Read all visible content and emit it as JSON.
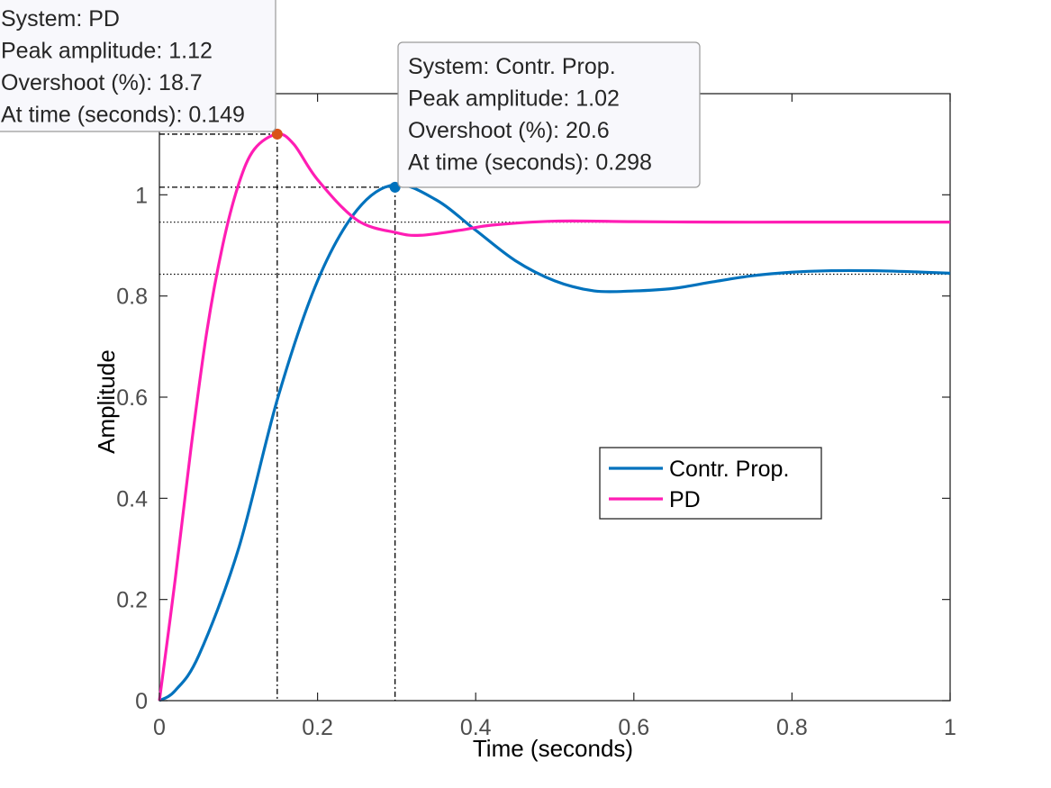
{
  "chart_data": {
    "type": "line",
    "title": "",
    "xlabel": "Time (seconds)",
    "ylabel": "Amplitude",
    "xlim": [
      0,
      1
    ],
    "ylim": [
      0,
      1.2
    ],
    "xticks": [
      0,
      0.2,
      0.4,
      0.6,
      0.8,
      1
    ],
    "xtick_labels": [
      "0",
      "0.2",
      "0.4",
      "0.6",
      "0.8",
      "1"
    ],
    "yticks": [
      0,
      0.2,
      0.4,
      0.6,
      0.8,
      1
    ],
    "ytick_labels": [
      "0",
      "0.2",
      "0.4",
      "0.6",
      "0.8",
      "1"
    ],
    "grid": false,
    "legend_position": "center-right",
    "series": [
      {
        "name": "Contr. Prop.",
        "color": "#0072BD",
        "x": [
          0,
          0.02,
          0.05,
          0.1,
          0.15,
          0.2,
          0.25,
          0.298,
          0.35,
          0.4,
          0.45,
          0.5,
          0.55,
          0.6,
          0.65,
          0.7,
          0.75,
          0.8,
          0.85,
          0.9,
          0.95,
          1.0
        ],
        "y": [
          0,
          0.02,
          0.09,
          0.3,
          0.6,
          0.83,
          0.97,
          1.02,
          0.99,
          0.93,
          0.87,
          0.83,
          0.81,
          0.81,
          0.815,
          0.828,
          0.84,
          0.847,
          0.85,
          0.85,
          0.848,
          0.845
        ]
      },
      {
        "name": "PD",
        "color": "#FF1DB4",
        "x": [
          0,
          0.02,
          0.04,
          0.06,
          0.08,
          0.1,
          0.12,
          0.149,
          0.17,
          0.2,
          0.25,
          0.3,
          0.33,
          0.38,
          0.42,
          0.5,
          0.6,
          0.7,
          0.8,
          0.9,
          1.0
        ],
        "y": [
          0,
          0.24,
          0.5,
          0.73,
          0.9,
          1.02,
          1.09,
          1.12,
          1.1,
          1.03,
          0.95,
          0.925,
          0.92,
          0.93,
          0.94,
          0.948,
          0.947,
          0.946,
          0.946,
          0.946,
          0.946
        ]
      }
    ],
    "datatips": [
      {
        "series": "PD",
        "peak_x": 0.149,
        "peak_y": 1.12,
        "steady_y": 0.946,
        "marker_color": "#D95319",
        "lines": [
          "System: PD",
          "Peak amplitude: 1.12",
          "Overshoot (%): 18.7",
          "At time (seconds): 0.149"
        ]
      },
      {
        "series": "Contr. Prop.",
        "peak_x": 0.298,
        "peak_y": 1.015,
        "steady_y": 0.843,
        "marker_color": "#0072BD",
        "lines": [
          "System: Contr. Prop.",
          "Peak amplitude: 1.02",
          "Overshoot (%): 20.6",
          "At time (seconds): 0.298"
        ]
      }
    ]
  }
}
